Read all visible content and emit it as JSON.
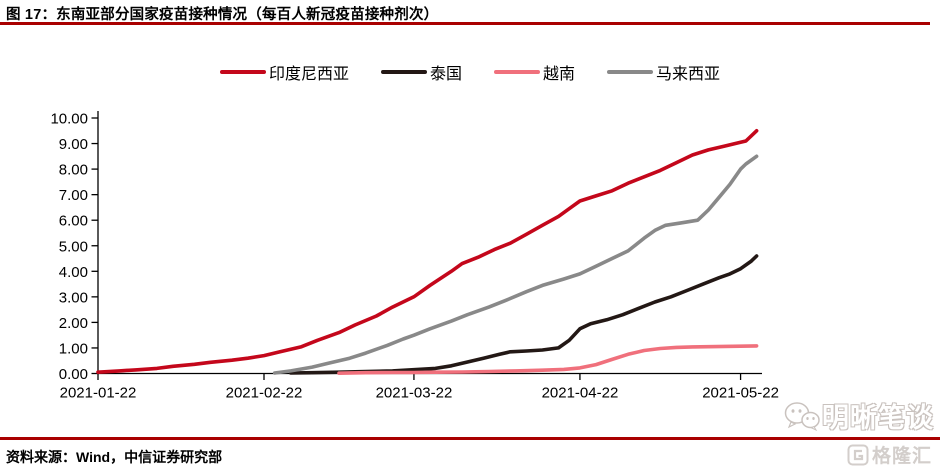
{
  "page": {
    "title": "图 17：东南亚部分国家疫苗接种情况（每百人新冠疫苗接种剂次）",
    "source": "资料来源：Wind，中信证券研究部",
    "accent_color": "#A90000"
  },
  "watermark": {
    "wechat_label": "明晰笔谈",
    "logo_label": "格隆汇",
    "logo_letter": "G",
    "color": "#c9c2be"
  },
  "chart_data": {
    "type": "line",
    "title": "东南亚部分国家疫苗接种情况（每百人新冠疫苗接种剂次）",
    "grid": false,
    "legend_position": "top",
    "x_axis": {
      "type": "date",
      "start": "2021-01-22",
      "end": "2021-05-25",
      "tick_labels": [
        "2021-01-22",
        "2021-02-22",
        "2021-03-22",
        "2021-04-22",
        "2021-05-22"
      ],
      "tick_day_offsets": [
        0,
        31,
        59,
        90,
        120
      ],
      "total_days": 124
    },
    "y_axis": {
      "min": 0,
      "max": 10,
      "step": 1,
      "tick_labels": [
        "0.00",
        "1.00",
        "2.00",
        "3.00",
        "4.00",
        "5.00",
        "6.00",
        "7.00",
        "8.00",
        "9.00",
        "10.00"
      ]
    },
    "series": [
      {
        "name": "印度尼西亚",
        "color": "#C4071B",
        "points": [
          [
            0,
            0.05
          ],
          [
            4,
            0.1
          ],
          [
            7,
            0.14
          ],
          [
            11,
            0.2
          ],
          [
            14,
            0.28
          ],
          [
            18,
            0.36
          ],
          [
            21,
            0.44
          ],
          [
            25,
            0.52
          ],
          [
            28,
            0.6
          ],
          [
            31,
            0.7
          ],
          [
            34,
            0.85
          ],
          [
            38,
            1.05
          ],
          [
            41,
            1.3
          ],
          [
            45,
            1.6
          ],
          [
            48,
            1.9
          ],
          [
            52,
            2.25
          ],
          [
            55,
            2.6
          ],
          [
            59,
            3.0
          ],
          [
            62,
            3.45
          ],
          [
            66,
            4.0
          ],
          [
            68,
            4.3
          ],
          [
            71,
            4.55
          ],
          [
            74,
            4.85
          ],
          [
            77,
            5.1
          ],
          [
            80,
            5.45
          ],
          [
            83,
            5.8
          ],
          [
            86,
            6.15
          ],
          [
            88,
            6.45
          ],
          [
            90,
            6.75
          ],
          [
            93,
            6.95
          ],
          [
            96,
            7.15
          ],
          [
            99,
            7.45
          ],
          [
            102,
            7.7
          ],
          [
            105,
            7.95
          ],
          [
            108,
            8.25
          ],
          [
            111,
            8.55
          ],
          [
            114,
            8.75
          ],
          [
            117,
            8.9
          ],
          [
            120,
            9.05
          ],
          [
            121,
            9.1
          ],
          [
            123,
            9.5
          ]
        ]
      },
      {
        "name": "泰国",
        "color": "#231815",
        "points": [
          [
            36,
            0.02
          ],
          [
            40,
            0.03
          ],
          [
            45,
            0.05
          ],
          [
            50,
            0.08
          ],
          [
            55,
            0.1
          ],
          [
            59,
            0.15
          ],
          [
            63,
            0.2
          ],
          [
            66,
            0.3
          ],
          [
            69,
            0.45
          ],
          [
            72,
            0.6
          ],
          [
            75,
            0.75
          ],
          [
            77,
            0.85
          ],
          [
            80,
            0.88
          ],
          [
            83,
            0.92
          ],
          [
            86,
            1.0
          ],
          [
            88,
            1.3
          ],
          [
            90,
            1.75
          ],
          [
            92,
            1.95
          ],
          [
            95,
            2.1
          ],
          [
            98,
            2.3
          ],
          [
            101,
            2.55
          ],
          [
            104,
            2.8
          ],
          [
            107,
            3.0
          ],
          [
            110,
            3.25
          ],
          [
            113,
            3.5
          ],
          [
            116,
            3.75
          ],
          [
            118,
            3.9
          ],
          [
            120,
            4.1
          ],
          [
            122,
            4.4
          ],
          [
            123,
            4.6
          ]
        ]
      },
      {
        "name": "越南",
        "color": "#F0707C",
        "points": [
          [
            45,
            0.01
          ],
          [
            50,
            0.03
          ],
          [
            55,
            0.04
          ],
          [
            59,
            0.04
          ],
          [
            63,
            0.05
          ],
          [
            68,
            0.06
          ],
          [
            73,
            0.08
          ],
          [
            78,
            0.1
          ],
          [
            83,
            0.13
          ],
          [
            87,
            0.16
          ],
          [
            90,
            0.22
          ],
          [
            93,
            0.35
          ],
          [
            96,
            0.55
          ],
          [
            99,
            0.75
          ],
          [
            102,
            0.9
          ],
          [
            105,
            0.98
          ],
          [
            108,
            1.02
          ],
          [
            111,
            1.04
          ],
          [
            114,
            1.05
          ],
          [
            117,
            1.06
          ],
          [
            120,
            1.07
          ],
          [
            123,
            1.08
          ]
        ]
      },
      {
        "name": "马来西亚",
        "color": "#898989",
        "points": [
          [
            33,
            0.02
          ],
          [
            36,
            0.1
          ],
          [
            40,
            0.25
          ],
          [
            43,
            0.4
          ],
          [
            47,
            0.6
          ],
          [
            50,
            0.8
          ],
          [
            54,
            1.1
          ],
          [
            57,
            1.35
          ],
          [
            59,
            1.5
          ],
          [
            62,
            1.75
          ],
          [
            66,
            2.05
          ],
          [
            69,
            2.3
          ],
          [
            73,
            2.6
          ],
          [
            76,
            2.85
          ],
          [
            80,
            3.2
          ],
          [
            83,
            3.45
          ],
          [
            87,
            3.7
          ],
          [
            90,
            3.9
          ],
          [
            93,
            4.2
          ],
          [
            96,
            4.5
          ],
          [
            99,
            4.8
          ],
          [
            102,
            5.3
          ],
          [
            104,
            5.6
          ],
          [
            106,
            5.8
          ],
          [
            109,
            5.9
          ],
          [
            112,
            6.0
          ],
          [
            114,
            6.4
          ],
          [
            116,
            6.9
          ],
          [
            118,
            7.4
          ],
          [
            120,
            8.0
          ],
          [
            121,
            8.2
          ],
          [
            123,
            8.5
          ]
        ]
      }
    ]
  }
}
